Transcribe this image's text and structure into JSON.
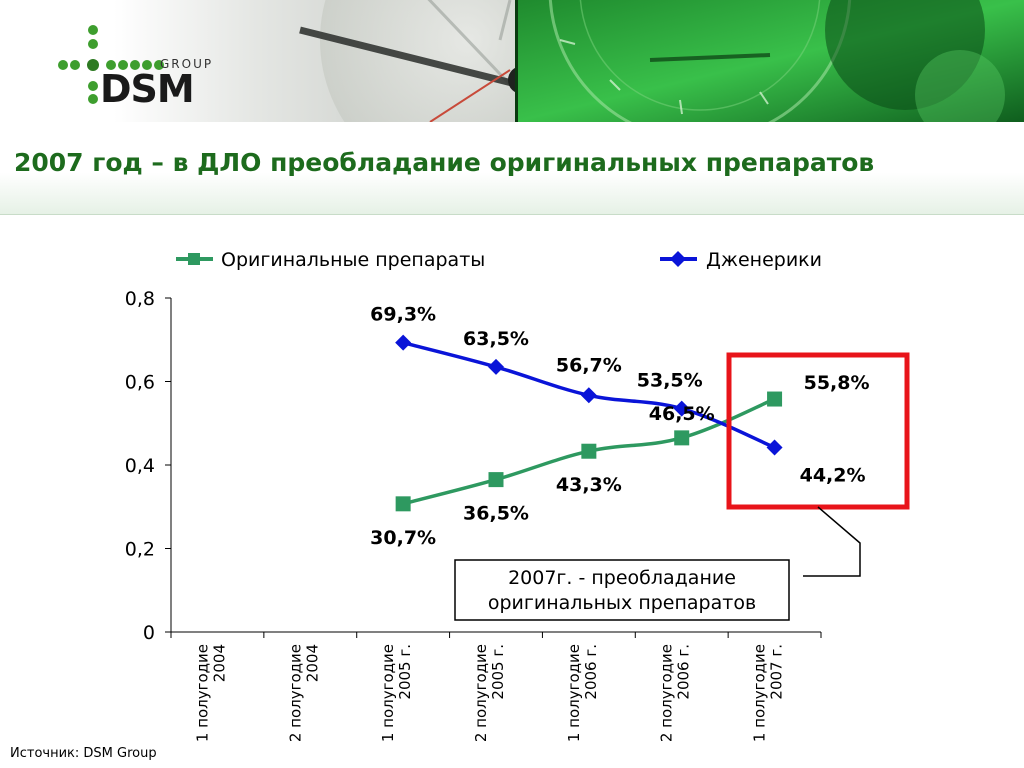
{
  "header": {
    "logo_text": "DSM",
    "logo_subtext": "GROUP"
  },
  "slide": {
    "title": "2007 год – в ДЛО преобладание оригинальных препаратов",
    "source": "Источник: DSM Group"
  },
  "callout": {
    "lines": [
      "2007г. - преобладание",
      "оригинальных препаратов"
    ]
  },
  "colors": {
    "original": "#2e9960",
    "generic": "#0a14d8",
    "highlight_box": "#e8141a",
    "title": "#1d6b1d"
  },
  "chart_data": {
    "type": "line",
    "categories": [
      [
        "1 полугодие",
        "2004"
      ],
      [
        "2 полугодие",
        "2004"
      ],
      [
        "1 полугодие",
        "2005 г."
      ],
      [
        "2 полугодие",
        "2005 г."
      ],
      [
        "1 полугодие",
        "2006 г."
      ],
      [
        "2 полугодие",
        "2006 г."
      ],
      [
        "1 полугодие",
        "2007 г."
      ]
    ],
    "ylim": [
      0,
      0.8
    ],
    "yticks": [
      "0",
      "0,2",
      "0,4",
      "0,6",
      "0,8"
    ],
    "legend_position": "top",
    "grid": false,
    "series": [
      {
        "name": "Оригинальные препараты",
        "marker": "square",
        "values": [
          null,
          null,
          0.307,
          0.365,
          0.433,
          0.465,
          0.558
        ],
        "labels": [
          null,
          null,
          "30,7%",
          "36,5%",
          "43,3%",
          "46,5%",
          "55,8%"
        ]
      },
      {
        "name": "Дженерики",
        "marker": "diamond",
        "values": [
          null,
          null,
          0.693,
          0.635,
          0.567,
          0.535,
          0.442
        ],
        "labels": [
          null,
          null,
          "69,3%",
          "63,5%",
          "56,7%",
          "53,5%",
          "44,2%"
        ]
      }
    ]
  }
}
